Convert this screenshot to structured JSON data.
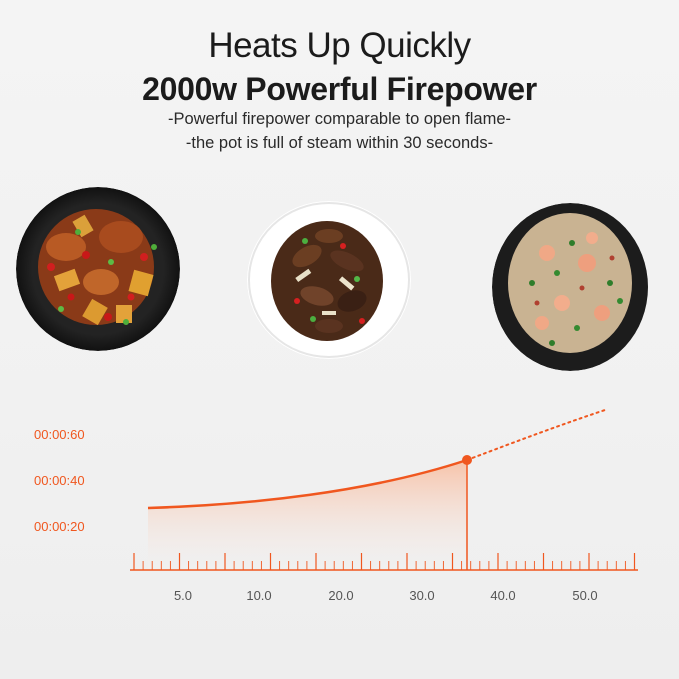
{
  "header": {
    "title": "Heats Up Quickly",
    "subtitle": "2000w Powerful Firepower",
    "line1": "-Powerful firepower comparable to open flame-",
    "line2": "-the pot is full of steam within 30 seconds-"
  },
  "dishes": [
    {
      "name": "spicy-chicken-stirfry-dish",
      "plate": "#1e1e1e"
    },
    {
      "name": "mushroom-stirfry-dish",
      "plate": "#ffffff"
    },
    {
      "name": "fried-rice-shrimp-dish",
      "plate": "#1e1e1e"
    }
  ],
  "colors": {
    "accent": "#f0571f",
    "fill_top": "#f7c2a8",
    "text_dark": "#1b1b1b",
    "tick_gray": "#555555"
  },
  "chart_data": {
    "type": "area",
    "y_ticks": [
      "00:00:60",
      "00:00:40",
      "00:00:20"
    ],
    "x_ticks": [
      "5.0",
      "10.0",
      "20.0",
      "30.0",
      "40.0",
      "50.0"
    ],
    "highlight_marker": true
  }
}
